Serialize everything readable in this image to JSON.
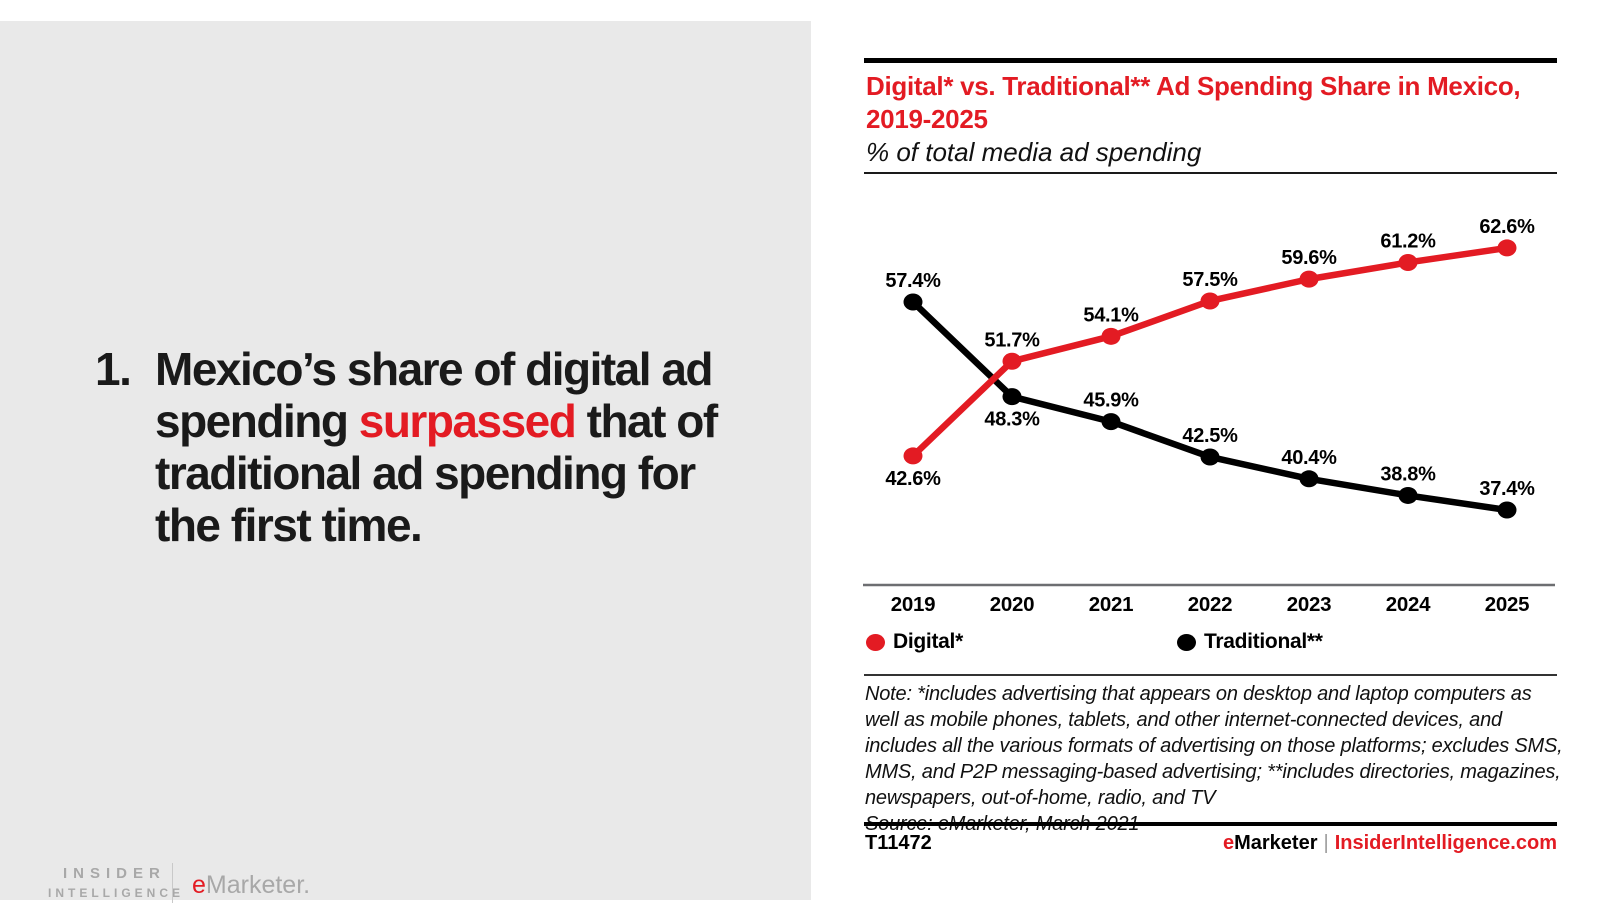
{
  "colors": {
    "accent": "#e31b23",
    "panel_gray": "#e9e9e9",
    "axis_gray": "#6d6e71",
    "logo_gray": "#a8a8a8"
  },
  "left_panel": {
    "number": "1.",
    "headline_before": "Mexico’s share of digital ad spending ",
    "headline_highlight": "surpassed",
    "headline_after": " that of traditional ad spending for the first time.",
    "logo": {
      "insider": "INSIDER",
      "intelligence": "INTELLIGENCE",
      "emarketer_e": "e",
      "emarketer_rest": "Marketer."
    }
  },
  "chart": {
    "title": "Digital* vs. Traditional** Ad Spending Share in Mexico, 2019-2025",
    "subtitle": "% of total media ad spending"
  },
  "chart_data": {
    "type": "line",
    "title": "Digital* vs. Traditional** Ad Spending Share in Mexico, 2019-2025",
    "subtitle": "% of total media ad spending",
    "unit": "% of total media ad spending",
    "categories": [
      "2019",
      "2020",
      "2021",
      "2022",
      "2023",
      "2024",
      "2025"
    ],
    "series": [
      {
        "name": "Digital*",
        "color": "#e31b23",
        "values": [
          42.6,
          51.7,
          54.1,
          57.5,
          59.6,
          61.2,
          62.6
        ],
        "label_pos": [
          "below",
          "above",
          "above",
          "above",
          "above",
          "above",
          "above"
        ]
      },
      {
        "name": "Traditional**",
        "color": "#000000",
        "values": [
          57.4,
          48.3,
          45.9,
          42.5,
          40.4,
          38.8,
          37.4
        ],
        "label_pos": [
          "above",
          "below",
          "above",
          "above",
          "above",
          "above",
          "above"
        ]
      }
    ],
    "ylim": [
      30,
      70
    ],
    "grid": false,
    "legend_position": "bottom",
    "data_labels": true
  },
  "note": {
    "note_text": "Note: *includes advertising that appears on desktop and laptop computers as well as mobile phones, tablets, and other internet-connected devices, and includes all the various formats of advertising on those platforms; excludes SMS, MMS, and P2P messaging-based advertising; **includes directories, magazines, newspapers, out-of-home, radio, and TV",
    "source_text": "Source: eMarketer, March 2021"
  },
  "footer": {
    "id": "T11472",
    "brand_e": "e",
    "brand_rest": "Marketer",
    "separator": "|",
    "site": "InsiderIntelligence.com"
  }
}
